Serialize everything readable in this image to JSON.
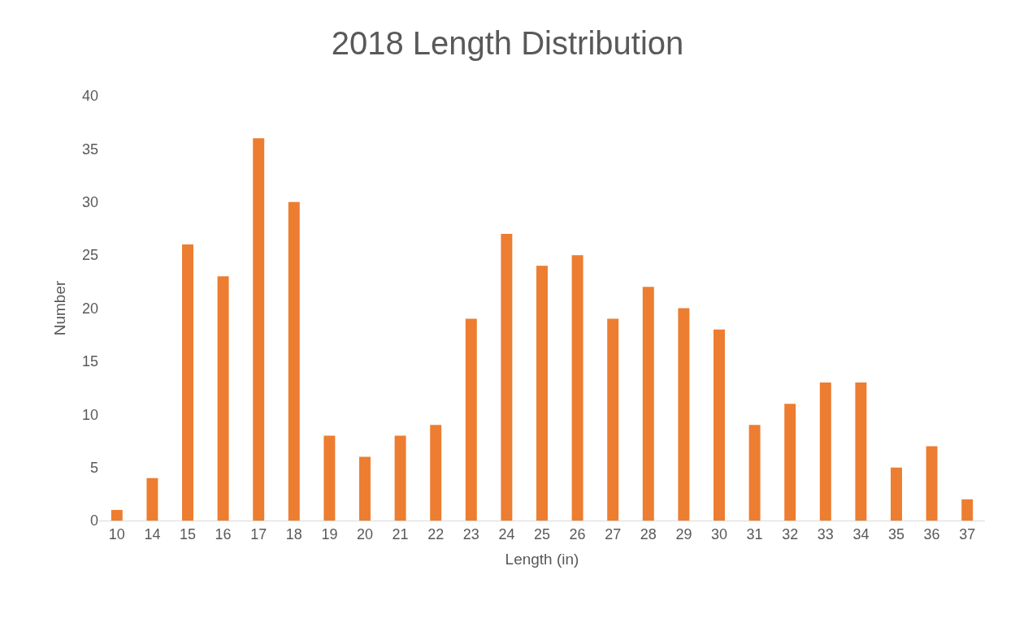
{
  "chart_data": {
    "type": "bar",
    "title": "2018 Length Distribution",
    "xlabel": "Length (in)",
    "ylabel": "Number",
    "categories": [
      "10",
      "14",
      "15",
      "16",
      "17",
      "18",
      "19",
      "20",
      "21",
      "22",
      "23",
      "24",
      "25",
      "26",
      "27",
      "28",
      "29",
      "30",
      "31",
      "32",
      "33",
      "34",
      "35",
      "36",
      "37"
    ],
    "values": [
      1,
      4,
      26,
      23,
      36,
      30,
      8,
      6,
      8,
      9,
      19,
      27,
      24,
      25,
      19,
      22,
      20,
      18,
      9,
      11,
      13,
      13,
      5,
      7,
      2
    ],
    "color": "#ed7d31",
    "ylim": [
      0,
      40
    ],
    "yticks": [
      0,
      5,
      10,
      15,
      20,
      25,
      30,
      35,
      40
    ]
  }
}
